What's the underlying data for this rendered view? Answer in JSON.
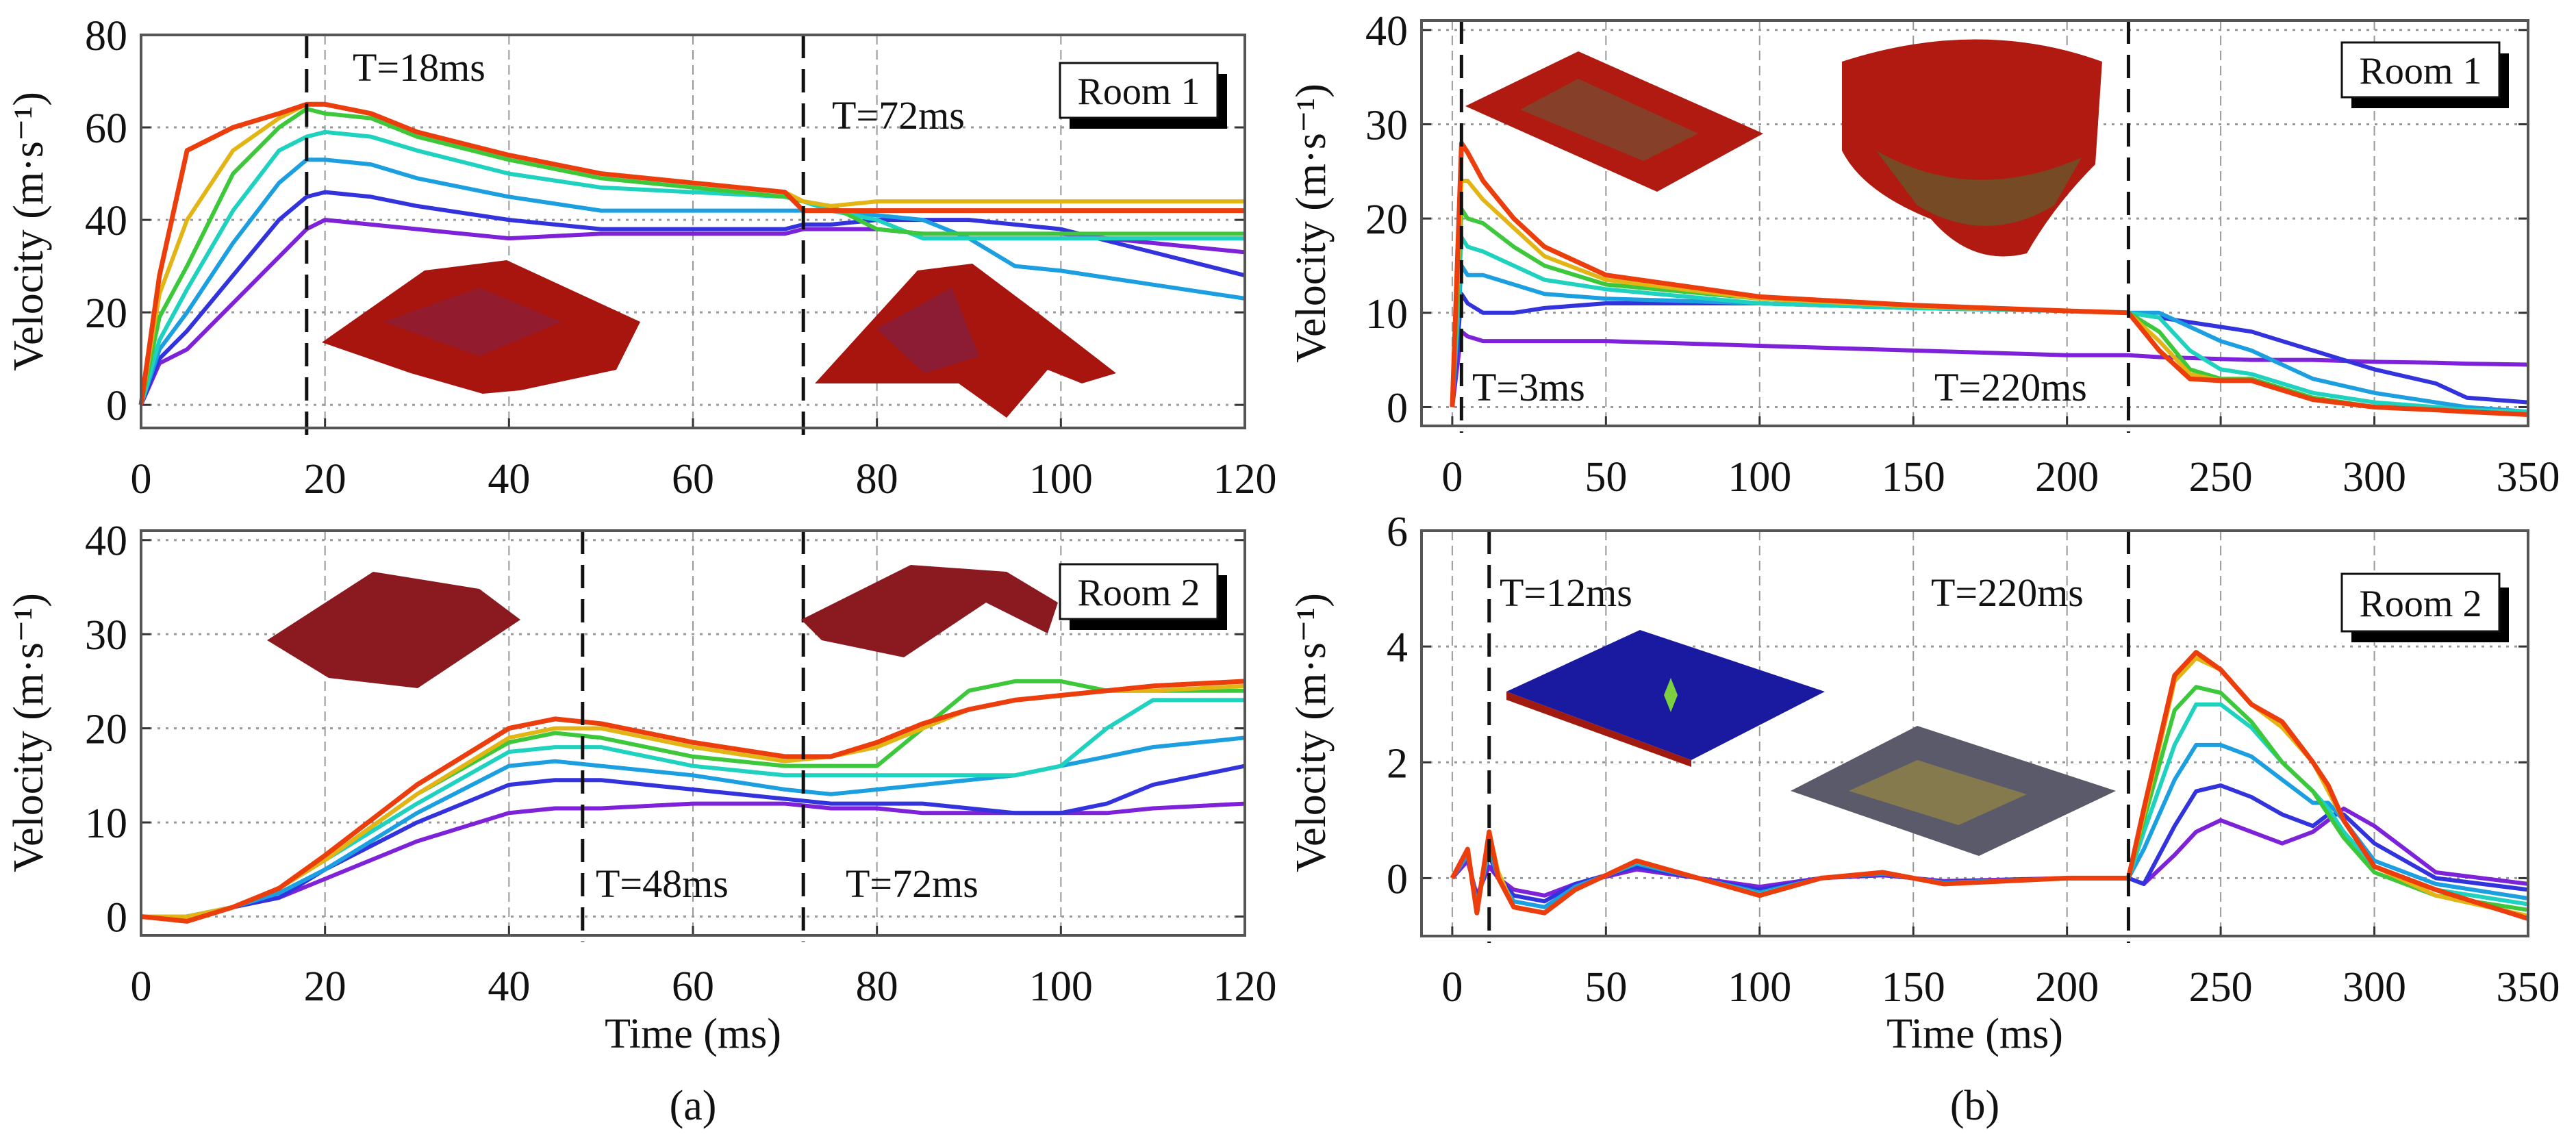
{
  "colors": [
    "#7d22d8",
    "#3333dd",
    "#1c9fe0",
    "#1fd2bf",
    "#3cc83a",
    "#e2b515",
    "#ec3d0c"
  ],
  "figure_labels": {
    "a": "(a)",
    "b": "(b)"
  },
  "chart_data": [
    {
      "id": "a_top",
      "type": "line",
      "panel": "a",
      "title": "",
      "legend_box": "Room 1",
      "xlabel": "",
      "ylabel": "Velocity (m·s⁻¹)",
      "xlim": [
        0,
        120
      ],
      "ylim": [
        -5,
        80
      ],
      "xticks": [
        0,
        20,
        40,
        60,
        80,
        100,
        120
      ],
      "yticks": [
        0,
        20,
        40,
        60,
        80
      ],
      "grid": true,
      "markers": [
        {
          "x": 18,
          "label": "T=18ms"
        },
        {
          "x": 72,
          "label": "T=72ms"
        }
      ],
      "x": [
        0,
        2,
        5,
        10,
        15,
        18,
        20,
        25,
        30,
        40,
        50,
        60,
        70,
        72,
        75,
        80,
        85,
        90,
        95,
        100,
        110,
        120
      ],
      "series": [
        {
          "name": "s1",
          "values": [
            0,
            9,
            12,
            22,
            32,
            38,
            40,
            39,
            38,
            36,
            37,
            37,
            37,
            38,
            38,
            38,
            37,
            37,
            37,
            37,
            35,
            33
          ]
        },
        {
          "name": "s2",
          "values": [
            0,
            10,
            16,
            28,
            40,
            45,
            46,
            45,
            43,
            40,
            38,
            38,
            38,
            39,
            39,
            40,
            40,
            40,
            39,
            38,
            33,
            28
          ]
        },
        {
          "name": "s3",
          "values": [
            0,
            12,
            20,
            35,
            48,
            53,
            53,
            52,
            49,
            45,
            42,
            42,
            42,
            42,
            42,
            41,
            40,
            36,
            30,
            29,
            26,
            23
          ]
        },
        {
          "name": "s4",
          "values": [
            0,
            14,
            25,
            42,
            55,
            58,
            59,
            58,
            55,
            50,
            47,
            46,
            45,
            44,
            42,
            40,
            36,
            36,
            36,
            36,
            36,
            36
          ]
        },
        {
          "name": "s5",
          "values": [
            0,
            19,
            30,
            50,
            60,
            64,
            63,
            62,
            58,
            53,
            49,
            47,
            45,
            44,
            43,
            38,
            37,
            37,
            37,
            37,
            37,
            37
          ]
        },
        {
          "name": "s6",
          "values": [
            0,
            24,
            40,
            55,
            62,
            65,
            65,
            63,
            59,
            54,
            50,
            48,
            46,
            44,
            43,
            44,
            44,
            44,
            44,
            44,
            44,
            44
          ]
        },
        {
          "name": "s7",
          "values": [
            0,
            28,
            55,
            60,
            63,
            65,
            65,
            63,
            59,
            54,
            50,
            48,
            46,
            42,
            42,
            42,
            42,
            42,
            42,
            42,
            42,
            42
          ]
        }
      ]
    },
    {
      "id": "a_bottom",
      "type": "line",
      "panel": "a",
      "title": "",
      "legend_box": "Room 2",
      "xlabel": "Time (ms)",
      "ylabel": "Velocity (m·s⁻¹)",
      "xlim": [
        0,
        120
      ],
      "ylim": [
        -2,
        41
      ],
      "xticks": [
        0,
        20,
        40,
        60,
        80,
        100,
        120
      ],
      "yticks": [
        0,
        10,
        20,
        30,
        40
      ],
      "grid": true,
      "markers": [
        {
          "x": 48,
          "label": "T=48ms"
        },
        {
          "x": 72,
          "label": "T=72ms"
        }
      ],
      "x": [
        0,
        5,
        10,
        15,
        20,
        30,
        40,
        45,
        50,
        60,
        70,
        75,
        80,
        85,
        90,
        95,
        100,
        105,
        110,
        120
      ],
      "series": [
        {
          "name": "s1",
          "values": [
            0,
            0,
            1,
            2,
            4,
            8,
            11,
            11.5,
            11.5,
            12,
            12,
            11.5,
            11.5,
            11,
            11,
            11,
            11,
            11,
            11.5,
            12
          ]
        },
        {
          "name": "s2",
          "values": [
            0,
            0,
            1,
            2,
            5,
            10,
            14,
            14.5,
            14.5,
            13.5,
            12.5,
            12,
            12,
            12,
            11.5,
            11,
            11,
            12,
            14,
            16
          ]
        },
        {
          "name": "s3",
          "values": [
            0,
            0,
            1,
            2.5,
            5,
            11,
            16,
            16.5,
            16,
            15,
            13.5,
            13,
            13.5,
            14,
            14.5,
            15,
            16,
            17,
            18,
            19
          ]
        },
        {
          "name": "s4",
          "values": [
            0,
            0,
            1,
            3,
            6,
            12,
            17.5,
            18,
            18,
            16,
            15,
            15,
            15,
            15,
            15,
            15,
            16,
            20,
            23,
            23
          ]
        },
        {
          "name": "s5",
          "values": [
            0,
            0,
            1,
            3,
            6,
            13,
            18.5,
            19.5,
            19,
            17,
            16,
            16,
            16,
            20,
            24,
            25,
            25,
            24,
            24,
            24
          ]
        },
        {
          "name": "s6",
          "values": [
            0,
            0,
            1,
            3,
            6,
            13,
            19,
            20,
            20,
            18,
            16.5,
            17,
            18,
            20,
            22,
            23,
            23.5,
            24,
            24,
            24.5
          ]
        },
        {
          "name": "s7",
          "values": [
            0,
            -0.5,
            1,
            3,
            6.5,
            14,
            20,
            21,
            20.5,
            18.5,
            17,
            17,
            18.5,
            20.5,
            22,
            23,
            23.5,
            24,
            24.5,
            25
          ]
        }
      ]
    },
    {
      "id": "b_top",
      "type": "line",
      "panel": "b",
      "title": "",
      "legend_box": "Room 1",
      "xlabel": "",
      "ylabel": "Velocity (m·s⁻¹)",
      "xlim": [
        -10,
        350
      ],
      "ylim": [
        -2,
        41
      ],
      "xticks": [
        0,
        50,
        100,
        150,
        200,
        250,
        300,
        350
      ],
      "yticks": [
        0,
        10,
        20,
        30,
        40
      ],
      "grid": true,
      "markers": [
        {
          "x": 3,
          "label": "T=3ms"
        },
        {
          "x": 220,
          "label": "T=220ms"
        }
      ],
      "x": [
        0,
        3,
        5,
        10,
        20,
        30,
        50,
        100,
        150,
        200,
        220,
        230,
        240,
        250,
        260,
        280,
        300,
        320,
        330,
        350
      ],
      "series": [
        {
          "name": "s1",
          "values": [
            0,
            8,
            7.5,
            7,
            7,
            7,
            7,
            6.5,
            6,
            5.5,
            5.5,
            5.3,
            5.2,
            5.1,
            5,
            5,
            4.8,
            4.7,
            4.6,
            4.5
          ]
        },
        {
          "name": "s2",
          "values": [
            0,
            12,
            11,
            10,
            10,
            10.5,
            11,
            11,
            10.5,
            10.2,
            10,
            9.5,
            9,
            8.5,
            8,
            6,
            4,
            2.5,
            1,
            0.5
          ]
        },
        {
          "name": "s3",
          "values": [
            0,
            15,
            14,
            14,
            13,
            12,
            11.5,
            11,
            10.5,
            10.2,
            10,
            10,
            8.5,
            7,
            6,
            3,
            1.5,
            0.5,
            0,
            -0.5
          ]
        },
        {
          "name": "s4",
          "values": [
            0,
            18,
            17,
            16.5,
            15,
            13.5,
            12.5,
            11,
            10.5,
            10.2,
            10,
            9.5,
            6,
            4,
            3.5,
            1.5,
            0.5,
            0,
            -0.3,
            -0.5
          ]
        },
        {
          "name": "s5",
          "values": [
            0,
            21,
            20,
            19.5,
            17,
            15,
            13,
            11.5,
            10.7,
            10.2,
            10,
            8,
            4,
            3,
            3,
            1,
            0,
            -0.3,
            -0.5,
            -0.8
          ]
        },
        {
          "name": "s6",
          "values": [
            0,
            24,
            24,
            22,
            19,
            16,
            13.5,
            11.5,
            10.7,
            10.2,
            10,
            7,
            3.5,
            2.8,
            2.8,
            0.8,
            0,
            -0.3,
            -0.5,
            -0.8
          ]
        },
        {
          "name": "s7",
          "values": [
            0,
            28,
            27,
            24,
            20,
            17,
            14,
            11.7,
            10.8,
            10.2,
            10,
            6,
            3,
            2.8,
            2.8,
            0.8,
            0,
            -0.3,
            -0.5,
            -0.8
          ]
        }
      ]
    },
    {
      "id": "b_bottom",
      "type": "line",
      "panel": "b",
      "title": "",
      "legend_box": "Room 2",
      "xlabel": "Time (ms)",
      "ylabel": "Velocity (m·s⁻¹)",
      "xlim": [
        -10,
        350
      ],
      "ylim": [
        -1,
        6
      ],
      "xticks": [
        0,
        50,
        100,
        150,
        200,
        250,
        300,
        350
      ],
      "yticks": [
        0,
        2,
        4,
        6
      ],
      "grid": true,
      "markers": [
        {
          "x": 12,
          "label": "T=12ms"
        },
        {
          "x": 220,
          "label": "T=220ms"
        }
      ],
      "x": [
        0,
        5,
        8,
        12,
        15,
        20,
        30,
        40,
        60,
        80,
        100,
        120,
        140,
        160,
        200,
        220,
        225,
        235,
        242,
        250,
        260,
        270,
        280,
        285,
        290,
        300,
        320,
        350
      ],
      "series": [
        {
          "name": "s1",
          "values": [
            0,
            0.3,
            -0.3,
            0.2,
            0,
            -0.2,
            -0.3,
            -0.1,
            0.15,
            0,
            -0.15,
            0,
            0.05,
            -0.05,
            0,
            0,
            -0.1,
            0.4,
            0.8,
            1.0,
            0.8,
            0.6,
            0.8,
            1.0,
            1.2,
            0.9,
            0.1,
            -0.1
          ]
        },
        {
          "name": "s2",
          "values": [
            0,
            0.4,
            -0.4,
            0.4,
            0,
            -0.3,
            -0.4,
            -0.1,
            0.2,
            0,
            -0.2,
            0,
            0.07,
            -0.07,
            0,
            0,
            -0.1,
            0.9,
            1.5,
            1.6,
            1.4,
            1.1,
            0.9,
            1.1,
            1.1,
            0.6,
            0,
            -0.2
          ]
        },
        {
          "name": "s3",
          "values": [
            0,
            0.4,
            -0.5,
            0.5,
            0,
            -0.4,
            -0.5,
            -0.15,
            0.25,
            0,
            -0.25,
            0,
            0.08,
            -0.08,
            0,
            0,
            0.5,
            1.7,
            2.3,
            2.3,
            2.1,
            1.7,
            1.3,
            1.3,
            1.0,
            0.3,
            -0.1,
            -0.35
          ]
        },
        {
          "name": "s4",
          "values": [
            0,
            0.5,
            -0.5,
            0.6,
            0.1,
            -0.5,
            -0.6,
            -0.2,
            0.28,
            0,
            -0.28,
            0,
            0.1,
            -0.1,
            0,
            0,
            0.8,
            2.3,
            3.0,
            3.0,
            2.6,
            2.0,
            1.5,
            1.2,
            0.8,
            0.2,
            -0.2,
            -0.45
          ]
        },
        {
          "name": "s5",
          "values": [
            0,
            0.5,
            -0.6,
            0.7,
            0.1,
            -0.5,
            -0.6,
            -0.2,
            0.3,
            0,
            -0.3,
            0,
            0.1,
            -0.1,
            0,
            0,
            1.0,
            2.9,
            3.3,
            3.2,
            2.7,
            2.0,
            1.5,
            1.1,
            0.7,
            0.1,
            -0.3,
            -0.55
          ]
        },
        {
          "name": "s6",
          "values": [
            0,
            0.5,
            -0.6,
            0.8,
            0.1,
            -0.5,
            -0.6,
            -0.2,
            0.3,
            0,
            -0.3,
            0,
            0.1,
            -0.1,
            0,
            0,
            1.1,
            3.4,
            3.8,
            3.6,
            3.0,
            2.6,
            2.0,
            1.5,
            1.0,
            0.2,
            -0.3,
            -0.65
          ]
        },
        {
          "name": "s7",
          "values": [
            0,
            0.5,
            -0.6,
            0.8,
            0,
            -0.5,
            -0.6,
            -0.2,
            0.3,
            0,
            -0.3,
            0,
            0.1,
            -0.1,
            0,
            0,
            1.2,
            3.5,
            3.9,
            3.6,
            3.0,
            2.7,
            2.0,
            1.6,
            1.0,
            0.2,
            -0.2,
            -0.7
          ]
        }
      ]
    }
  ]
}
